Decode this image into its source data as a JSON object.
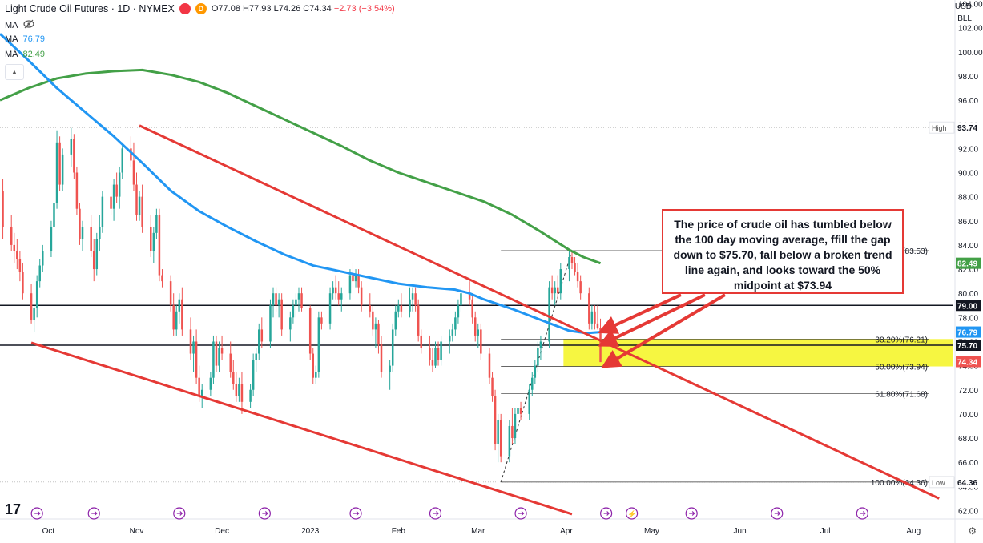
{
  "header": {
    "title": "Light Crude Oil Futures · 1D · NYMEX",
    "ohlc": {
      "o": "O77.08",
      "h": "H77.93",
      "l": "L74.26",
      "c": "C74.34",
      "chg": "−2.73 (−3.54%)"
    },
    "ma_rows": [
      {
        "label": "MA",
        "value": "",
        "icon": "eye-crossed-icon"
      },
      {
        "label": "MA",
        "value": "76.79",
        "color": "#2196f3"
      },
      {
        "label": "MA",
        "value": "82.49",
        "color": "#43a047"
      }
    ],
    "currency": "USD",
    "unit": "BLL"
  },
  "annotation": "The price of crude oil has tumbled below the 100 day moving average, ffill the gap down to $75.70, fall below a broken trend line again, and looks toward the 50% midpoint at $73.94",
  "colors": {
    "up": "#26a69a",
    "down": "#ef5350",
    "ma100": "#2196f3",
    "ma200": "#43a047",
    "trend": "#e53935",
    "zone": "#f5f520"
  },
  "chart_data": {
    "type": "candlestick",
    "y_ticks": [
      62,
      64,
      66,
      68,
      70,
      72,
      74,
      76,
      78,
      80,
      82,
      84,
      86,
      88,
      90,
      92,
      94,
      96,
      98,
      100,
      102,
      104
    ],
    "ylim": [
      61.3,
      104.3
    ],
    "x_labels": [
      {
        "label": "Oct",
        "day": 17
      },
      {
        "label": "Nov",
        "day": 48
      },
      {
        "label": "Dec",
        "day": 78
      },
      {
        "label": "2023",
        "day": 109
      },
      {
        "label": "Feb",
        "day": 140
      },
      {
        "label": "Mar",
        "day": 168
      },
      {
        "label": "Apr",
        "day": 199
      },
      {
        "label": "May",
        "day": 229
      },
      {
        "label": "Jun",
        "day": 260
      },
      {
        "label": "Jul",
        "day": 290
      },
      {
        "label": "Aug",
        "day": 321
      }
    ],
    "xlim": [
      0,
      335
    ],
    "candles": [
      [
        1,
        88.5,
        89.5,
        84.5,
        85.5
      ],
      [
        4,
        85.5,
        86.5,
        83.5,
        84.0
      ],
      [
        5,
        84.0,
        85.0,
        82.5,
        83.5
      ],
      [
        6,
        83.5,
        84.5,
        82.0,
        82.8
      ],
      [
        7,
        82.8,
        83.5,
        81.0,
        81.8
      ],
      [
        8,
        81.8,
        82.5,
        79.5,
        80.0
      ],
      [
        11,
        80.0,
        80.8,
        77.5,
        77.8
      ],
      [
        12,
        77.8,
        79.0,
        76.8,
        78.8
      ],
      [
        13,
        78.8,
        81.5,
        78.0,
        81.0
      ],
      [
        14,
        81.0,
        82.8,
        80.5,
        82.3
      ],
      [
        15,
        82.3,
        84.0,
        81.8,
        83.5
      ],
      [
        18,
        83.5,
        86.0,
        83.0,
        85.5
      ],
      [
        19,
        85.5,
        88.0,
        85.0,
        87.5
      ],
      [
        20,
        87.5,
        93.5,
        87.0,
        92.5
      ],
      [
        21,
        92.5,
        93.0,
        88.5,
        89.0
      ],
      [
        22,
        89.0,
        92.0,
        88.5,
        91.5
      ],
      [
        25,
        91.5,
        93.7,
        90.5,
        92.8
      ],
      [
        26,
        92.8,
        93.2,
        89.5,
        90.0
      ],
      [
        27,
        90.0,
        90.5,
        86.5,
        87.0
      ],
      [
        28,
        87.0,
        87.5,
        84.0,
        84.5
      ],
      [
        29,
        84.5,
        86.0,
        83.5,
        85.5
      ],
      [
        32,
        85.5,
        86.5,
        83.0,
        83.5
      ],
      [
        33,
        83.5,
        84.5,
        81.0,
        82.0
      ],
      [
        34,
        82.0,
        85.0,
        81.5,
        84.5
      ],
      [
        35,
        84.5,
        86.5,
        83.5,
        85.5
      ],
      [
        36,
        85.5,
        88.5,
        85.0,
        88.0
      ],
      [
        39,
        88.0,
        89.0,
        86.5,
        87.0
      ],
      [
        40,
        87.0,
        89.5,
        86.0,
        89.0
      ],
      [
        41,
        89.0,
        90.0,
        87.5,
        88.0
      ],
      [
        42,
        88.0,
        90.5,
        87.0,
        90.0
      ],
      [
        43,
        90.0,
        92.5,
        89.5,
        92.0
      ],
      [
        46,
        92.0,
        93.0,
        90.5,
        91.0
      ],
      [
        47,
        91.0,
        92.5,
        88.5,
        89.0
      ],
      [
        48,
        89.0,
        90.0,
        86.0,
        86.5
      ],
      [
        49,
        86.5,
        88.5,
        86.0,
        88.0
      ],
      [
        50,
        88.0,
        89.0,
        85.0,
        85.5
      ],
      [
        53,
        85.5,
        86.5,
        83.0,
        83.5
      ],
      [
        54,
        83.5,
        85.5,
        82.5,
        85.0
      ],
      [
        55,
        85.0,
        87.0,
        84.5,
        86.5
      ],
      [
        56,
        86.5,
        87.0,
        81.0,
        81.5
      ],
      [
        57,
        81.5,
        82.0,
        80.5,
        81.0
      ],
      [
        60,
        81.0,
        81.5,
        78.5,
        79.0
      ],
      [
        61,
        79.0,
        80.0,
        76.5,
        77.0
      ],
      [
        62,
        77.0,
        79.0,
        76.5,
        78.5
      ],
      [
        63,
        78.5,
        80.0,
        77.5,
        79.5
      ],
      [
        64,
        79.5,
        80.5,
        76.5,
        77.0
      ],
      [
        67,
        77.0,
        78.0,
        74.5,
        75.0
      ],
      [
        68,
        75.0,
        76.5,
        73.5,
        76.0
      ],
      [
        69,
        76.0,
        77.0,
        72.5,
        73.0
      ],
      [
        70,
        73.0,
        74.0,
        71.0,
        71.5
      ],
      [
        71,
        71.5,
        72.5,
        70.5,
        72.0
      ],
      [
        74,
        72.0,
        73.5,
        71.5,
        73.0
      ],
      [
        75,
        73.0,
        76.5,
        72.5,
        76.0
      ],
      [
        76,
        76.0,
        76.5,
        73.5,
        74.0
      ],
      [
        77,
        74.0,
        76.0,
        73.5,
        75.5
      ],
      [
        78,
        75.5,
        76.5,
        74.5,
        75.0
      ],
      [
        81,
        75.0,
        76.0,
        73.0,
        73.5
      ],
      [
        82,
        73.5,
        74.5,
        72.0,
        72.5
      ],
      [
        83,
        72.5,
        73.5,
        71.0,
        71.5
      ],
      [
        84,
        71.5,
        73.0,
        71.0,
        72.5
      ],
      [
        85,
        72.5,
        73.5,
        70.0,
        71.0
      ],
      [
        88,
        71.0,
        72.5,
        70.5,
        72.0
      ],
      [
        89,
        72.0,
        75.0,
        71.5,
        74.5
      ],
      [
        90,
        74.5,
        75.5,
        73.5,
        75.0
      ],
      [
        91,
        75.0,
        77.5,
        74.5,
        77.0
      ],
      [
        92,
        77.0,
        78.0,
        75.5,
        76.0
      ],
      [
        95,
        76.0,
        79.5,
        75.5,
        79.0
      ],
      [
        96,
        79.0,
        80.5,
        78.0,
        80.0
      ],
      [
        97,
        80.0,
        80.5,
        78.5,
        79.0
      ],
      [
        98,
        79.0,
        80.0,
        78.0,
        79.5
      ],
      [
        99,
        79.5,
        80.0,
        76.5,
        77.0
      ],
      [
        102,
        77.0,
        78.5,
        76.0,
        78.0
      ],
      [
        103,
        78.0,
        79.5,
        77.5,
        79.0
      ],
      [
        104,
        79.0,
        80.0,
        78.0,
        79.5
      ],
      [
        105,
        79.5,
        80.5,
        78.5,
        80.0
      ],
      [
        106,
        80.0,
        80.5,
        78.5,
        78.8
      ],
      [
        109,
        78.8,
        79.0,
        74.5,
        75.0
      ],
      [
        110,
        75.0,
        75.5,
        72.5,
        73.0
      ],
      [
        111,
        73.0,
        74.0,
        72.5,
        73.5
      ],
      [
        112,
        73.5,
        78.5,
        73.0,
        78.0
      ],
      [
        113,
        78.0,
        78.5,
        77.0,
        77.5
      ],
      [
        116,
        77.5,
        80.5,
        77.0,
        80.0
      ],
      [
        117,
        80.0,
        81.0,
        79.5,
        80.5
      ],
      [
        118,
        80.5,
        81.5,
        79.5,
        80.0
      ],
      [
        119,
        80.0,
        81.0,
        79.0,
        79.5
      ],
      [
        120,
        79.5,
        80.5,
        78.5,
        80.0
      ],
      [
        123,
        80.0,
        82.0,
        79.5,
        81.5
      ],
      [
        124,
        81.5,
        82.5,
        80.5,
        81.0
      ],
      [
        125,
        81.0,
        82.0,
        80.5,
        81.5
      ],
      [
        126,
        81.5,
        82.0,
        80.0,
        80.5
      ],
      [
        127,
        80.5,
        81.0,
        78.5,
        79.0
      ],
      [
        130,
        79.0,
        80.0,
        78.0,
        78.5
      ],
      [
        131,
        78.5,
        79.0,
        76.5,
        77.0
      ],
      [
        132,
        77.0,
        78.0,
        75.5,
        77.5
      ],
      [
        133,
        77.5,
        77.8,
        75.0,
        75.8
      ],
      [
        134,
        75.8,
        76.5,
        73.0,
        73.5
      ],
      [
        137,
        73.5,
        74.5,
        72.0,
        74.0
      ],
      [
        138,
        74.0,
        77.5,
        73.5,
        77.0
      ],
      [
        139,
        77.0,
        79.0,
        76.5,
        78.5
      ],
      [
        140,
        78.5,
        79.5,
        78.0,
        79.0
      ],
      [
        141,
        79.0,
        80.0,
        78.0,
        78.5
      ],
      [
        144,
        78.5,
        80.5,
        78.0,
        79.5
      ],
      [
        145,
        79.5,
        80.5,
        78.5,
        80.0
      ],
      [
        146,
        80.0,
        80.5,
        78.5,
        79.0
      ],
      [
        147,
        79.0,
        79.5,
        76.0,
        76.5
      ],
      [
        148,
        76.5,
        77.0,
        75.0,
        75.5
      ],
      [
        151,
        75.5,
        76.5,
        74.0,
        74.5
      ],
      [
        152,
        74.5,
        75.5,
        73.5,
        74.0
      ],
      [
        153,
        74.0,
        76.0,
        73.8,
        75.5
      ],
      [
        154,
        75.5,
        76.0,
        74.0,
        74.5
      ],
      [
        155,
        74.5,
        76.5,
        74.0,
        76.0
      ],
      [
        158,
        76.0,
        77.0,
        75.0,
        76.5
      ],
      [
        159,
        76.5,
        77.5,
        76.0,
        77.0
      ],
      [
        160,
        77.0,
        78.5,
        76.5,
        78.0
      ],
      [
        161,
        78.0,
        79.5,
        77.5,
        79.0
      ],
      [
        162,
        79.0,
        80.5,
        78.5,
        80.0
      ],
      [
        165,
        80.0,
        81.0,
        79.0,
        79.5
      ],
      [
        166,
        79.5,
        80.0,
        77.5,
        78.0
      ],
      [
        167,
        78.0,
        78.5,
        76.0,
        76.5
      ],
      [
        168,
        76.5,
        77.5,
        75.5,
        77.0
      ],
      [
        169,
        77.0,
        77.5,
        74.5,
        75.0
      ],
      [
        172,
        75.0,
        75.5,
        72.5,
        73.0
      ],
      [
        173,
        73.0,
        73.5,
        71.0,
        71.5
      ],
      [
        174,
        71.5,
        72.0,
        67.0,
        67.5
      ],
      [
        175,
        67.5,
        70.0,
        66.0,
        69.5
      ],
      [
        176,
        69.5,
        70.0,
        66.0,
        66.5
      ],
      [
        179,
        66.5,
        69.5,
        66.0,
        69.0
      ],
      [
        180,
        69.0,
        70.5,
        67.5,
        68.0
      ],
      [
        181,
        68.0,
        70.5,
        67.5,
        70.0
      ],
      [
        182,
        70.0,
        71.0,
        69.5,
        70.5
      ],
      [
        183,
        70.5,
        71.0,
        69.5,
        70.0
      ],
      [
        186,
        70.0,
        72.5,
        69.5,
        72.0
      ],
      [
        187,
        72.0,
        73.5,
        71.5,
        73.0
      ],
      [
        188,
        73.0,
        74.5,
        72.5,
        74.0
      ],
      [
        189,
        74.0,
        76.0,
        73.5,
        75.5
      ],
      [
        190,
        75.5,
        76.5,
        74.5,
        76.0
      ],
      [
        193,
        76.0,
        81.0,
        75.5,
        80.5
      ],
      [
        194,
        80.5,
        81.5,
        79.5,
        80.0
      ],
      [
        195,
        80.0,
        81.0,
        79.0,
        80.5
      ],
      [
        196,
        80.5,
        81.5,
        79.5,
        80.0
      ],
      [
        197,
        80.0,
        82.5,
        79.5,
        82.0
      ],
      [
        200,
        82.0,
        83.5,
        81.0,
        83.0
      ],
      [
        201,
        83.0,
        83.5,
        82.0,
        82.5
      ],
      [
        202,
        82.5,
        83.0,
        81.5,
        81.8
      ],
      [
        203,
        81.8,
        82.5,
        80.5,
        81.0
      ],
      [
        204,
        81.0,
        81.5,
        79.5,
        80.0
      ],
      [
        207,
        80.0,
        80.5,
        77.0,
        77.5
      ],
      [
        208,
        77.5,
        79.0,
        77.0,
        78.5
      ],
      [
        209,
        78.5,
        79.0,
        77.0,
        77.5
      ],
      [
        210,
        77.5,
        79.0,
        77.0,
        77.1
      ],
      [
        211,
        77.1,
        77.9,
        74.3,
        74.3
      ]
    ],
    "ma100": [
      [
        0,
        101.5
      ],
      [
        10,
        99.3
      ],
      [
        20,
        97.0
      ],
      [
        30,
        95.0
      ],
      [
        40,
        93.0
      ],
      [
        50,
        90.8
      ],
      [
        60,
        88.5
      ],
      [
        70,
        86.8
      ],
      [
        80,
        85.5
      ],
      [
        90,
        84.3
      ],
      [
        100,
        83.2
      ],
      [
        110,
        82.3
      ],
      [
        120,
        81.8
      ],
      [
        130,
        81.3
      ],
      [
        140,
        80.8
      ],
      [
        150,
        80.5
      ],
      [
        160,
        80.3
      ],
      [
        165,
        80.0
      ],
      [
        170,
        79.5
      ],
      [
        180,
        78.7
      ],
      [
        190,
        77.8
      ],
      [
        200,
        76.9
      ],
      [
        206,
        76.7
      ],
      [
        211,
        76.79
      ]
    ],
    "ma200": [
      [
        0,
        96.0
      ],
      [
        10,
        97.0
      ],
      [
        20,
        97.8
      ],
      [
        30,
        98.2
      ],
      [
        40,
        98.4
      ],
      [
        50,
        98.5
      ],
      [
        60,
        98.1
      ],
      [
        70,
        97.5
      ],
      [
        80,
        96.6
      ],
      [
        90,
        95.5
      ],
      [
        100,
        94.4
      ],
      [
        110,
        93.3
      ],
      [
        120,
        92.2
      ],
      [
        130,
        91.0
      ],
      [
        140,
        90.0
      ],
      [
        150,
        89.2
      ],
      [
        160,
        88.4
      ],
      [
        170,
        87.6
      ],
      [
        180,
        86.5
      ],
      [
        190,
        85.1
      ],
      [
        200,
        83.6
      ],
      [
        205,
        83.0
      ],
      [
        211,
        82.49
      ]
    ],
    "trend_lines": [
      {
        "name": "upper-trend-line",
        "points": [
          [
            49,
            93.9
          ],
          [
            330,
            63.0
          ]
        ]
      },
      {
        "name": "lower-trend-line",
        "points": [
          [
            11,
            75.9
          ],
          [
            201,
            61.7
          ]
        ]
      }
    ],
    "dashed_line": {
      "points": [
        [
          176,
          64.36
        ],
        [
          201,
          83.53
        ]
      ]
    },
    "horizontal_levels": [
      {
        "value": 79.0,
        "label": "79.00",
        "color": "#131722",
        "width": 1.5,
        "style": "solid"
      },
      {
        "value": 75.7,
        "label": "75.70",
        "color": "#131722",
        "width": 1.5,
        "style": "solid"
      },
      {
        "value": 93.74,
        "label": "93.74",
        "tag": "High",
        "color": "#888888",
        "width": 0.6,
        "style": "dotted"
      },
      {
        "value": 64.36,
        "label": "64.36",
        "tag": "Low",
        "color": "#888888",
        "width": 0.6,
        "style": "dotted"
      }
    ],
    "fib_levels": [
      {
        "value": 83.53,
        "label": "0.00%(83.53)"
      },
      {
        "value": 76.21,
        "label": "38.20%(76.21)"
      },
      {
        "value": 73.94,
        "label": "50.00%(73.94)"
      },
      {
        "value": 71.68,
        "label": "61.80%(71.68)"
      },
      {
        "value": 64.36,
        "label": "100.00%(64.36)"
      }
    ],
    "fib_start_day": 176,
    "zone": {
      "from_day": 198,
      "top": 76.21,
      "bottom": 73.94
    },
    "price_tags": [
      {
        "value": 82.49,
        "label": "82.49",
        "bg": "#43a047",
        "fg": "#ffffff"
      },
      {
        "value": 76.79,
        "label": "76.79",
        "bg": "#2196f3",
        "fg": "#ffffff"
      },
      {
        "value": 74.34,
        "label": "74.34",
        "bg": "#ef5350",
        "fg": "#ffffff"
      }
    ]
  }
}
